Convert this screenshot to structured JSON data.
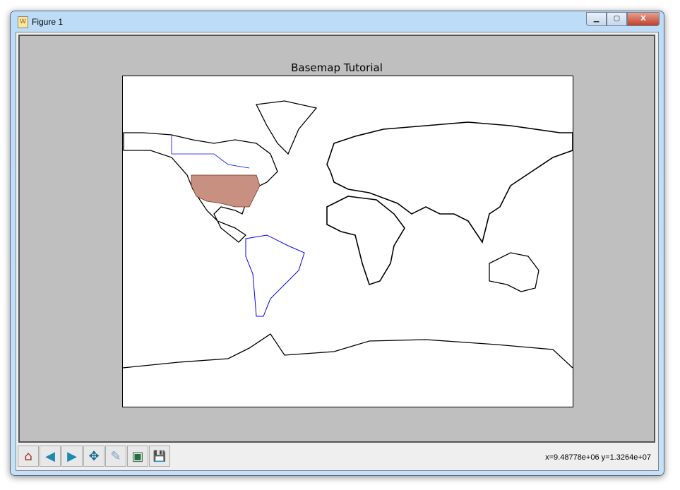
{
  "window": {
    "title": "Figure 1",
    "controls": [
      "minimize",
      "maximize",
      "close"
    ]
  },
  "plot": {
    "title": "Basemap Tutorial",
    "us_fill_color": "#c89080",
    "border_color": "#0000ff"
  },
  "toolbar": {
    "buttons": [
      {
        "name": "home",
        "icon": "home-icon",
        "glyph": "⌂"
      },
      {
        "name": "back",
        "icon": "arrow-left-icon",
        "glyph": "◀"
      },
      {
        "name": "forward",
        "icon": "arrow-right-icon",
        "glyph": "▶"
      },
      {
        "name": "pan",
        "icon": "move-icon",
        "glyph": "✥"
      },
      {
        "name": "zoom",
        "icon": "zoom-rect-icon",
        "glyph": "✎"
      },
      {
        "name": "subplots",
        "icon": "subplots-icon",
        "glyph": "▣"
      },
      {
        "name": "save",
        "icon": "save-icon",
        "glyph": "💾"
      }
    ]
  },
  "status": {
    "coords": "x=9.48778e+06  y=1.3264e+07"
  }
}
